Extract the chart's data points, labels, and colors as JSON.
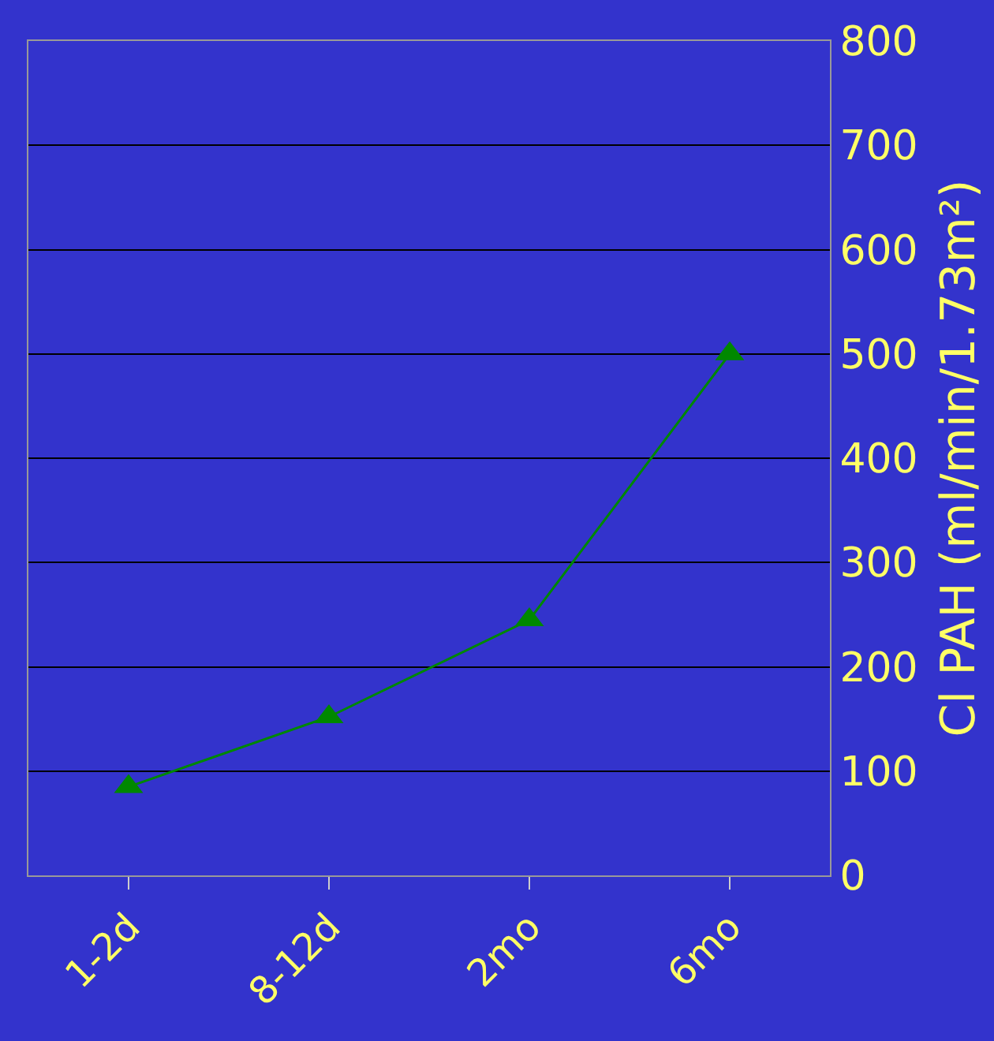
{
  "chart_data": {
    "type": "line",
    "ylabel": "Cl PAH (ml/min/1.73m²)",
    "categories": [
      "1-2d",
      "8-12d",
      "2mo",
      "6mo"
    ],
    "series": [
      {
        "color": "#008800",
        "values": [
          85,
          152,
          245,
          500
        ]
      }
    ],
    "ylim": [
      0,
      800
    ],
    "yticks": [
      0,
      100,
      200,
      300,
      400,
      500,
      600,
      700,
      800
    ],
    "grid": "y",
    "marker": "triangle",
    "line_style": "solid",
    "legend": false
  }
}
